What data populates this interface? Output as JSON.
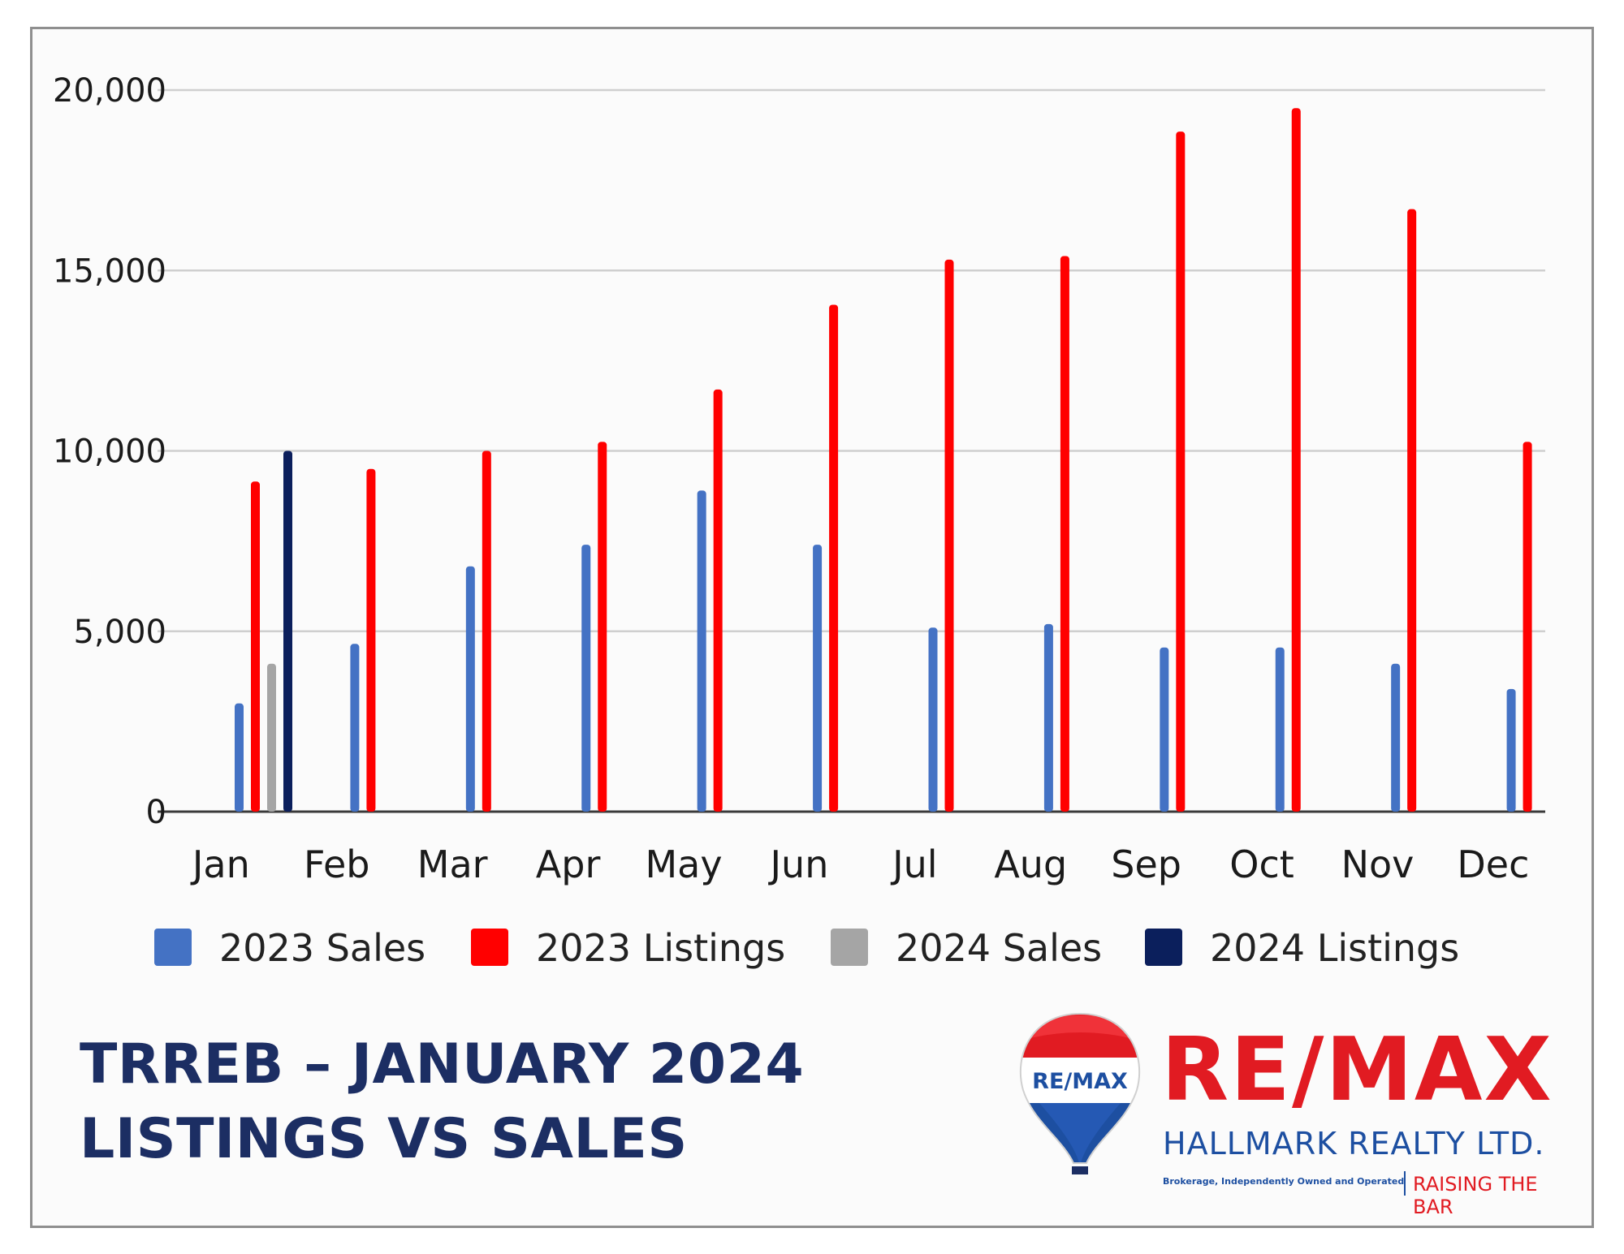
{
  "chart_data": {
    "type": "bar",
    "categories": [
      "Jan",
      "Feb",
      "Mar",
      "Apr",
      "May",
      "Jun",
      "Jul",
      "Aug",
      "Sep",
      "Oct",
      "Nov",
      "Dec"
    ],
    "series": [
      {
        "name": "2023 Sales",
        "color": "#4472c4",
        "values": [
          3000,
          4650,
          6800,
          7400,
          8900,
          7400,
          5100,
          5200,
          4550,
          4550,
          4100,
          3400
        ]
      },
      {
        "name": "2023 Listings",
        "color": "#ff0000",
        "values": [
          9150,
          9500,
          10000,
          10250,
          11700,
          14050,
          15300,
          15400,
          18850,
          19500,
          16700,
          10250
        ]
      },
      {
        "name": "2024 Sales",
        "color": "#a5a5a5",
        "values": [
          4100,
          null,
          null,
          null,
          null,
          null,
          null,
          null,
          null,
          null,
          null,
          null
        ]
      },
      {
        "name": "2024 Listings",
        "color": "#0b1f5c",
        "values": [
          10000,
          null,
          null,
          null,
          null,
          null,
          null,
          null,
          null,
          null,
          null,
          null
        ]
      }
    ],
    "yticks": [
      "0",
      "5,000",
      "10,000",
      "15,000",
      "20,000"
    ],
    "ylim": [
      0,
      20000
    ],
    "grid": true,
    "legend_position": "bottom"
  },
  "headline": {
    "line1": "TRREB – JANUARY 2024",
    "line2": "LISTINGS VS SALES"
  },
  "brand": {
    "name": "RE/MAX",
    "balloon_text": "RE/MAX",
    "subtitle": "HALLMARK REALTY LTD.",
    "fine_print": "Brokerage, Independently Owned and Operated",
    "tagline": "RAISING THE BAR",
    "colors": {
      "red": "#e11b22",
      "blue": "#1d4fa1",
      "navy": "#1c2e63"
    }
  }
}
